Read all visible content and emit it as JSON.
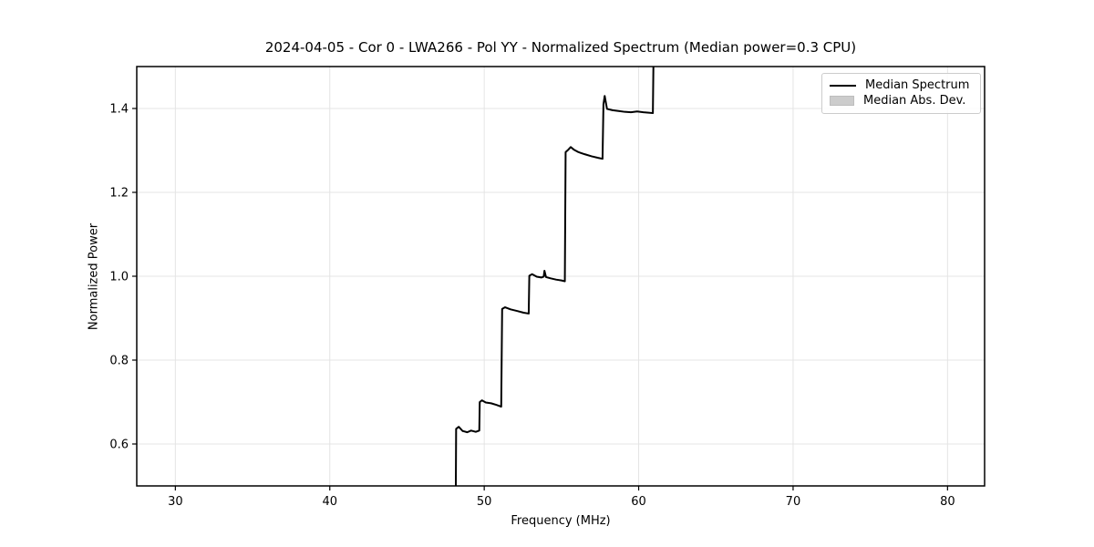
{
  "chart_data": {
    "type": "line",
    "title": "2024-04-05 - Cor 0 - LWA266 - Pol YY - Normalized Spectrum (Median power=0.3 CPU)",
    "xlabel": "Frequency (MHz)",
    "ylabel": "Normalized Power",
    "xlim": [
      27.5,
      82.4
    ],
    "ylim": [
      0.5,
      1.5
    ],
    "xticks": [
      30,
      40,
      50,
      60,
      70,
      80
    ],
    "xtick_labels": [
      "30",
      "40",
      "50",
      "60",
      "70",
      "80"
    ],
    "yticks": [
      0.6,
      0.8,
      1.0,
      1.2,
      1.4
    ],
    "ytick_labels": [
      "0.6",
      "0.8",
      "1.0",
      "1.2",
      "1.4"
    ],
    "grid": true,
    "grid_color": "#e4e4e4",
    "frame_color": "#000000",
    "background": "#ffffff",
    "legend": {
      "position": "upper right",
      "entries": [
        {
          "label": "Median Spectrum",
          "marker": "line",
          "color": "#000000"
        },
        {
          "label": "Median Abs. Dev.",
          "marker": "patch",
          "color": "#cccccc"
        }
      ]
    },
    "series": [
      {
        "name": "Median Spectrum",
        "type": "line",
        "color": "#000000",
        "line_width": 2,
        "points": [
          [
            48.16,
            0.49
          ],
          [
            48.18,
            0.636
          ],
          [
            48.35,
            0.641
          ],
          [
            48.6,
            0.631
          ],
          [
            48.9,
            0.628
          ],
          [
            49.15,
            0.632
          ],
          [
            49.45,
            0.629
          ],
          [
            49.68,
            0.632
          ],
          [
            49.71,
            0.7
          ],
          [
            49.85,
            0.704
          ],
          [
            50.1,
            0.699
          ],
          [
            50.45,
            0.697
          ],
          [
            50.8,
            0.693
          ],
          [
            51.1,
            0.689
          ],
          [
            51.16,
            0.922
          ],
          [
            51.35,
            0.926
          ],
          [
            51.7,
            0.921
          ],
          [
            52.15,
            0.917
          ],
          [
            52.55,
            0.913
          ],
          [
            52.88,
            0.911
          ],
          [
            52.92,
            1.001
          ],
          [
            53.1,
            1.005
          ],
          [
            53.4,
            0.999
          ],
          [
            53.7,
            0.997
          ],
          [
            53.85,
            0.999
          ],
          [
            53.9,
            1.013
          ],
          [
            54.0,
            0.998
          ],
          [
            54.3,
            0.995
          ],
          [
            54.65,
            0.992
          ],
          [
            55.0,
            0.99
          ],
          [
            55.22,
            0.988
          ],
          [
            55.27,
            1.296
          ],
          [
            55.45,
            1.302
          ],
          [
            55.6,
            1.308
          ],
          [
            55.8,
            1.302
          ],
          [
            56.1,
            1.296
          ],
          [
            56.5,
            1.291
          ],
          [
            56.95,
            1.286
          ],
          [
            57.4,
            1.282
          ],
          [
            57.66,
            1.28
          ],
          [
            57.72,
            1.41
          ],
          [
            57.8,
            1.43
          ],
          [
            57.95,
            1.399
          ],
          [
            58.3,
            1.396
          ],
          [
            58.7,
            1.394
          ],
          [
            59.1,
            1.392
          ],
          [
            59.5,
            1.391
          ],
          [
            59.9,
            1.393
          ],
          [
            60.3,
            1.391
          ],
          [
            60.65,
            1.39
          ],
          [
            60.92,
            1.389
          ],
          [
            60.96,
            1.52
          ]
        ]
      }
    ],
    "annotations": {
      "shape": "Staircase spectrum rising from below 0.5 at 48.2 MHz to above 1.5 at 61.0 MHz; flat elsewhere (off-scale).",
      "step_levels": [
        0.64,
        0.7,
        0.92,
        1.0,
        1.3,
        1.39
      ],
      "step_edges_mhz": [
        48.2,
        49.7,
        51.2,
        52.9,
        55.3,
        57.7,
        61.0
      ]
    }
  }
}
